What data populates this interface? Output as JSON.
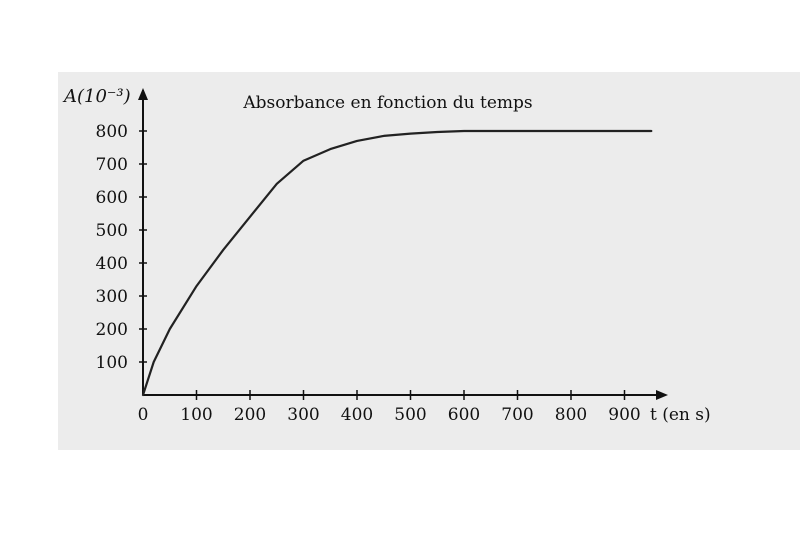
{
  "chart_data": {
    "type": "line",
    "title": "Absorbance en fonction du temps",
    "ylabel": "A(10⁻³)",
    "xlabel": "t (en s)",
    "xlim": [
      0,
      1000
    ],
    "ylim": [
      0,
      800
    ],
    "x_ticks": [
      "0",
      "100",
      "200",
      "300",
      "400",
      "500",
      "600",
      "700",
      "800",
      "900"
    ],
    "y_ticks": [
      "100",
      "200",
      "300",
      "400",
      "500",
      "600",
      "700",
      "800"
    ],
    "series": [
      {
        "x": [
          0,
          20,
          50,
          100,
          150,
          200,
          250,
          300,
          350,
          400,
          450,
          500,
          550,
          600,
          700,
          800,
          950
        ],
        "values": [
          0,
          100,
          200,
          330,
          440,
          540,
          640,
          710,
          745,
          770,
          785,
          792,
          797,
          800,
          800,
          800,
          800
        ]
      }
    ],
    "colors": {
      "background": "#ececec",
      "curve": "#222222"
    }
  }
}
